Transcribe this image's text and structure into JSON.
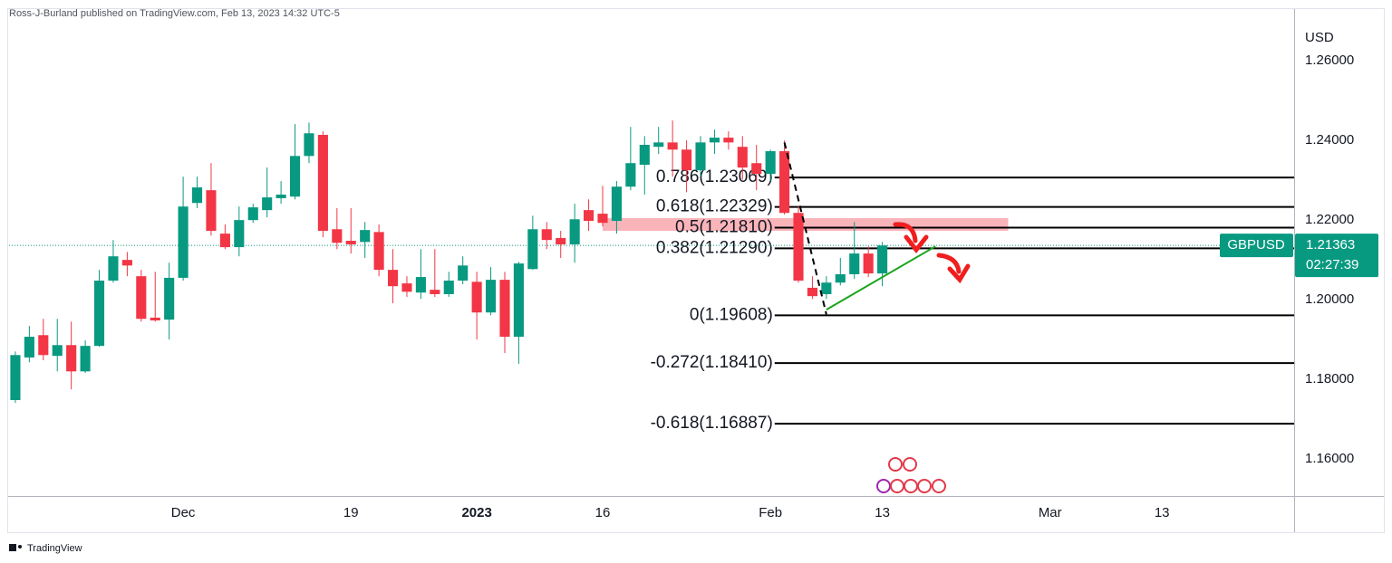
{
  "header": {
    "text": "Ross-J-Burland published on TradingView.com, Feb 13, 2023 14:32 UTC-5"
  },
  "footer": {
    "brand": "TradingView"
  },
  "chart_data": {
    "type": "candlestick",
    "symbol": "GBPUSD",
    "y_axis_label": "USD",
    "current_price": 1.21363,
    "countdown": "02:27:39",
    "up_color": "#089981",
    "down_color": "#f23645",
    "x": [
      0,
      1,
      2,
      3,
      4,
      5,
      6,
      7,
      8,
      9,
      10,
      11,
      12,
      13,
      14,
      15,
      16,
      17,
      18,
      19,
      20,
      21,
      22,
      23,
      24,
      25,
      26,
      27,
      28,
      29,
      30,
      31,
      32,
      33,
      34,
      35,
      36,
      37,
      38,
      39,
      40,
      41,
      42,
      43,
      44,
      45,
      46,
      47,
      48,
      49,
      50,
      51,
      52,
      53,
      54,
      55,
      56,
      57,
      58,
      59,
      60,
      61,
      62
    ],
    "open": [
      1.1748,
      1.1855,
      1.1911,
      1.1859,
      1.1886,
      1.182,
      1.1884,
      1.2048,
      1.21,
      1.2059,
      1.1955,
      1.195,
      1.2055,
      1.2243,
      1.2275,
      1.2166,
      1.2132,
      1.22,
      1.2225,
      1.2255,
      1.2259,
      1.2361,
      1.2414,
      1.2177,
      1.2148,
      1.2145,
      1.217,
      1.2075,
      1.2041,
      1.2018,
      1.2025,
      1.2014,
      1.2048,
      1.2045,
      1.1968,
      1.205,
      1.1907,
      1.2077,
      1.2177,
      1.2155,
      1.2139,
      1.2225,
      1.2216,
      1.2198,
      1.2284,
      1.2339,
      1.2384,
      1.2395,
      1.2377,
      1.2325,
      1.2395,
      1.2407,
      1.2384,
      1.2343,
      1.2316,
      1.2373,
      1.2218,
      1.203,
      1.2014,
      1.2043,
      1.2064,
      1.2116,
      1.2066
    ],
    "high": [
      1.187,
      1.1934,
      1.1952,
      1.1952,
      1.1945,
      1.1898,
      1.2075,
      1.215,
      1.212,
      1.2075,
      1.207,
      1.2093,
      1.2309,
      1.2309,
      1.2343,
      1.2189,
      1.2234,
      1.2241,
      1.2332,
      1.2298,
      1.2441,
      1.2445,
      1.2423,
      1.223,
      1.223,
      1.2195,
      1.2189,
      1.2127,
      1.2059,
      1.2127,
      1.2127,
      1.207,
      1.2109,
      1.207,
      1.2082,
      1.207,
      1.2095,
      1.2211,
      1.2195,
      1.2173,
      1.2241,
      1.2252,
      1.2286,
      1.2298,
      1.2434,
      1.2411,
      1.2434,
      1.245,
      1.24,
      1.2411,
      1.2427,
      1.2423,
      1.2411,
      1.2389,
      1.2377,
      1.24,
      1.2234,
      1.2059,
      1.2059,
      1.2105,
      1.2195,
      1.2134,
      1.2145
    ],
    "low": [
      1.1741,
      1.1843,
      1.1848,
      1.182,
      1.1775,
      1.1816,
      1.1882,
      1.2043,
      1.2059,
      1.1945,
      1.1945,
      1.19,
      1.2048,
      1.223,
      1.2161,
      1.2127,
      1.2109,
      1.2193,
      1.2207,
      1.2241,
      1.2252,
      1.2343,
      1.2157,
      1.2127,
      1.2116,
      1.2105,
      1.2059,
      1.1991,
      1.2007,
      1.2002,
      1.2007,
      1.2007,
      1.2039,
      1.19,
      1.1961,
      1.1866,
      1.1839,
      1.2075,
      1.2127,
      1.2105,
      1.2093,
      1.2173,
      1.2184,
      1.2166,
      1.2275,
      1.2264,
      1.2366,
      1.2309,
      1.227,
      1.2309,
      1.2366,
      1.2377,
      1.2302,
      1.2275,
      1.2298,
      1.2214,
      1.2043,
      1.2002,
      1.2002,
      1.2036,
      1.2052,
      1.2057,
      1.2034
    ],
    "close": [
      1.1861,
      1.1907,
      1.1861,
      1.1886,
      1.182,
      1.1884,
      1.2048,
      1.2109,
      1.2086,
      1.1952,
      1.1948,
      1.2055,
      1.2234,
      1.2282,
      1.2173,
      1.2132,
      1.22,
      1.2232,
      1.2257,
      1.2264,
      1.2361,
      1.2418,
      1.2173,
      1.2143,
      1.2139,
      1.2175,
      1.2075,
      1.2034,
      1.202,
      1.2057,
      1.2014,
      1.2048,
      1.2086,
      1.1968,
      1.205,
      1.1907,
      1.2091,
      1.2177,
      1.215,
      1.2139,
      1.2202,
      1.2198,
      1.2193,
      1.2284,
      1.2343,
      1.2389,
      1.2395,
      1.2377,
      1.2325,
      1.2395,
      1.2407,
      1.2395,
      1.2332,
      1.2316,
      1.2373,
      1.2218,
      1.2048,
      1.2009,
      1.2043,
      1.2064,
      1.2116,
      1.2066,
      1.21363
    ],
    "xlim": [
      -0.45,
      91.45
    ],
    "ylim": [
      1.1507,
      1.273
    ],
    "xticks": [
      {
        "value": 12,
        "label": "Dec"
      },
      {
        "value": 24,
        "label": "19"
      },
      {
        "value": 33,
        "label": "2023"
      },
      {
        "value": 42,
        "label": "16"
      },
      {
        "value": 54,
        "label": "Feb"
      },
      {
        "value": 62,
        "label": "13"
      },
      {
        "value": 74,
        "label": "Mar"
      },
      {
        "value": 82,
        "label": "13"
      }
    ],
    "yticks": [
      {
        "value": 1.26,
        "label": "1.26000"
      },
      {
        "value": 1.24,
        "label": "1.24000"
      },
      {
        "value": 1.22,
        "label": "1.22000"
      },
      {
        "value": 1.2,
        "label": "1.20000"
      },
      {
        "value": 1.18,
        "label": "1.18000"
      },
      {
        "value": 1.16,
        "label": "1.16000"
      }
    ],
    "grid": false,
    "fib_x_start": 54.3,
    "fib_levels": [
      {
        "value": 1.23069,
        "label": "0.786(1.23069)"
      },
      {
        "value": 1.22329,
        "label": "0.618(1.22329)"
      },
      {
        "value": 1.2181,
        "label": "0.5(1.21810)"
      },
      {
        "value": 1.2129,
        "label": "0.382(1.21290)"
      },
      {
        "value": 1.19608,
        "label": "0(1.19608)"
      },
      {
        "value": 1.1841,
        "label": "-0.272(1.18410)"
      },
      {
        "value": 1.16887,
        "label": "-0.618(1.16887)"
      }
    ],
    "zone": {
      "x": [
        42,
        71
      ],
      "y": [
        1.2173,
        1.2205
      ],
      "color": "#f7a1a9"
    },
    "dashed_line": {
      "x": [
        55,
        58
      ],
      "y": [
        1.2395,
        1.1963
      ]
    },
    "trend_line": {
      "x": [
        58,
        65.8
      ],
      "y": [
        1.1975,
        1.2134
      ],
      "color": "#1aa51a"
    }
  }
}
